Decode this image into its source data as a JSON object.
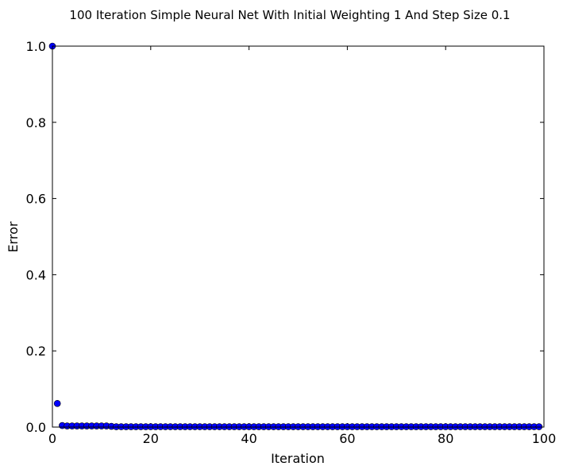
{
  "chart_data": {
    "type": "scatter",
    "title": "100 Iteration Simple Neural Net With Initial Weighting 1 And Step Size 0.1",
    "xlabel": "Iteration",
    "ylabel": "Error",
    "xlim": [
      0,
      100
    ],
    "ylim": [
      0.0,
      1.0
    ],
    "xticks": [
      0,
      20,
      40,
      60,
      80,
      100
    ],
    "yticks": [
      0.0,
      0.2,
      0.4,
      0.6,
      0.8,
      1.0
    ],
    "xtick_labels": [
      "0",
      "20",
      "40",
      "60",
      "80",
      "100"
    ],
    "ytick_labels": [
      "0.0",
      "0.2",
      "0.4",
      "0.6",
      "0.8",
      "1.0"
    ],
    "grid": false,
    "marker_color": "#0000ff",
    "series": [
      {
        "x": [
          0,
          1,
          2,
          3,
          4,
          5,
          6,
          7,
          8,
          9,
          10,
          11,
          12,
          13,
          14,
          15,
          16,
          17,
          18,
          19,
          20,
          21,
          22,
          23,
          24,
          25,
          26,
          27,
          28,
          29,
          30,
          31,
          32,
          33,
          34,
          35,
          36,
          37,
          38,
          39,
          40,
          41,
          42,
          43,
          44,
          45,
          46,
          47,
          48,
          49,
          50,
          51,
          52,
          53,
          54,
          55,
          56,
          57,
          58,
          59,
          60,
          61,
          62,
          63,
          64,
          65,
          66,
          67,
          68,
          69,
          70,
          71,
          72,
          73,
          74,
          75,
          76,
          77,
          78,
          79,
          80,
          81,
          82,
          83,
          84,
          85,
          86,
          87,
          88,
          89,
          90,
          91,
          92,
          93,
          94,
          95,
          96,
          97,
          98,
          99
        ],
        "y": [
          1.0,
          0.062,
          0.004,
          0.003,
          0.003,
          0.003,
          0.003,
          0.003,
          0.003,
          0.003,
          0.003,
          0.003,
          0.002,
          0.001,
          0.001,
          0.001,
          0.001,
          0.001,
          0.001,
          0.001,
          0.001,
          0.001,
          0.001,
          0.001,
          0.001,
          0.001,
          0.001,
          0.001,
          0.001,
          0.001,
          0.001,
          0.001,
          0.001,
          0.001,
          0.001,
          0.001,
          0.001,
          0.001,
          0.001,
          0.001,
          0.001,
          0.001,
          0.001,
          0.001,
          0.001,
          0.001,
          0.001,
          0.001,
          0.001,
          0.001,
          0.001,
          0.001,
          0.001,
          0.001,
          0.001,
          0.001,
          0.001,
          0.001,
          0.001,
          0.001,
          0.001,
          0.001,
          0.001,
          0.001,
          0.001,
          0.001,
          0.001,
          0.001,
          0.001,
          0.001,
          0.001,
          0.001,
          0.001,
          0.001,
          0.001,
          0.001,
          0.001,
          0.001,
          0.001,
          0.001,
          0.001,
          0.001,
          0.001,
          0.001,
          0.001,
          0.001,
          0.001,
          0.001,
          0.001,
          0.001,
          0.001,
          0.001,
          0.001,
          0.001,
          0.001,
          0.001,
          0.001,
          0.001,
          0.001,
          0.001
        ]
      }
    ]
  }
}
